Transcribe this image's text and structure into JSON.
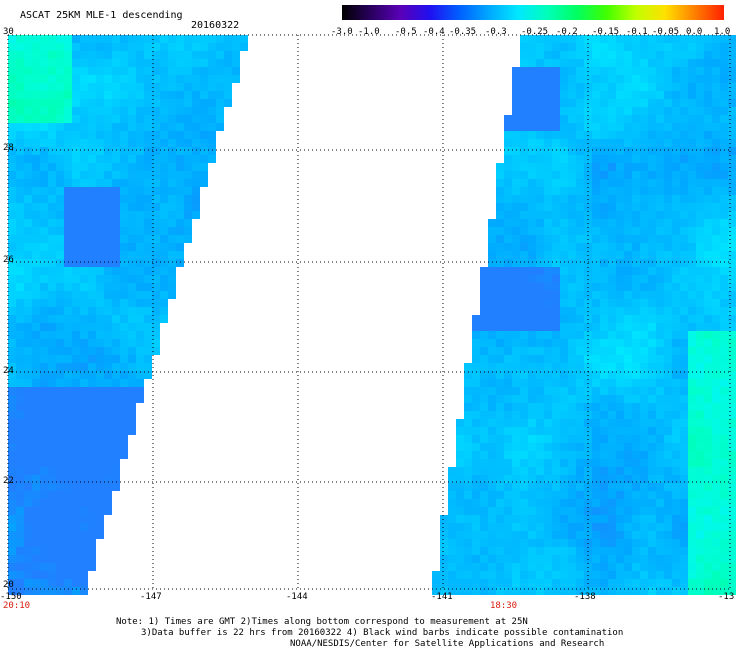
{
  "header": {
    "title": "ASCAT 25KM MLE-1 descending",
    "date": "20160322"
  },
  "colorbar": {
    "labels": [
      "-3.0",
      "-1.0",
      "-0.5",
      "-0.4",
      "-0.35",
      "-0.3",
      "-0.25",
      "-0.2",
      "-0.15",
      "-0.1",
      "-0.05",
      "0.0",
      "1.0"
    ],
    "colors": [
      "#000000",
      "#2a0060",
      "#5a00b8",
      "#2010f0",
      "#0060ff",
      "#00a8ff",
      "#00e8ff",
      "#00ffb8",
      "#00ff60",
      "#40ff00",
      "#c0ff00",
      "#ffe000",
      "#ff8000",
      "#ff2000"
    ]
  },
  "axes": {
    "lat_ticks": [
      "30",
      "28",
      "26",
      "24",
      "22",
      "20"
    ],
    "lon_ticks": [
      "-150",
      "-147",
      "-144",
      "-141",
      "-138",
      "-13"
    ],
    "time_labels": [
      "20:10",
      "18:30"
    ]
  },
  "notes": {
    "line1": "Note: 1) Times are GMT 2)Times along bottom correspond to measurement at 25N",
    "line2": "3)Data buffer is 22 hrs from 20160322 4) Black wind barbs indicate possible contamination",
    "line3": "NOAA/NESDIS/Center for Satellite Applications and Research"
  },
  "map_data": {
    "lat_range": [
      20,
      30
    ],
    "lon_range": [
      -150,
      -135
    ],
    "swaths": [
      {
        "name": "west",
        "time": "20:10"
      },
      {
        "name": "east",
        "time": "18:30"
      }
    ],
    "dominant_values": "-0.3 to -0.2"
  }
}
